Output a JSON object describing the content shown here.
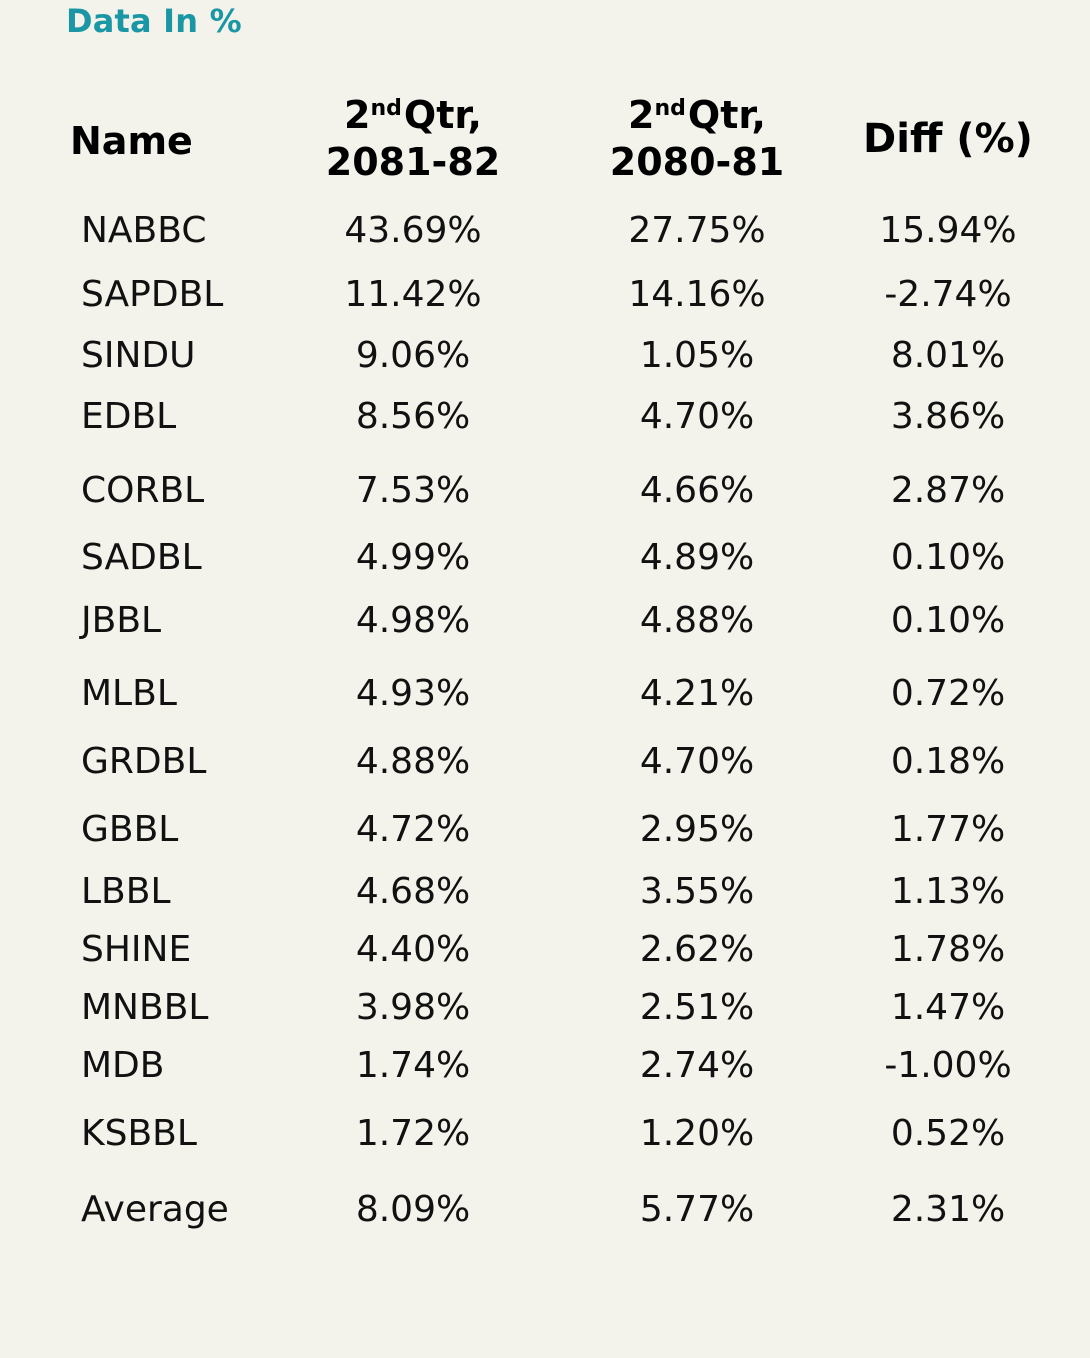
{
  "caption": "Data In %",
  "table": {
    "headers": {
      "name": "Name",
      "q1": {
        "sup_num": "2",
        "sup": "nd",
        "word": "Qtr,",
        "period": "2081-82"
      },
      "q2": {
        "sup_num": "2",
        "sup": "nd",
        "word": "Qtr,",
        "period": "2080-81"
      },
      "diff": "Diff (%)"
    },
    "rows": [
      {
        "name": "NABBC",
        "q1": "43.69%",
        "q2": "27.75%",
        "diff": "15.94%"
      },
      {
        "name": "SAPDBL",
        "q1": "11.42%",
        "q2": "14.16%",
        "diff": "-2.74%"
      },
      {
        "name": "SINDU",
        "q1": "9.06%",
        "q2": "1.05%",
        "diff": "8.01%"
      },
      {
        "name": "EDBL",
        "q1": "8.56%",
        "q2": "4.70%",
        "diff": "3.86%"
      },
      {
        "name": "CORBL",
        "q1": "7.53%",
        "q2": "4.66%",
        "diff": "2.87%"
      },
      {
        "name": "SADBL",
        "q1": "4.99%",
        "q2": "4.89%",
        "diff": "0.10%"
      },
      {
        "name": "JBBL",
        "q1": "4.98%",
        "q2": "4.88%",
        "diff": "0.10%"
      },
      {
        "name": "MLBL",
        "q1": "4.93%",
        "q2": "4.21%",
        "diff": "0.72%"
      },
      {
        "name": "GRDBL",
        "q1": "4.88%",
        "q2": "4.70%",
        "diff": "0.18%"
      },
      {
        "name": "GBBL",
        "q1": "4.72%",
        "q2": "2.95%",
        "diff": "1.77%"
      },
      {
        "name": "LBBL",
        "q1": "4.68%",
        "q2": "3.55%",
        "diff": "1.13%"
      },
      {
        "name": "SHINE",
        "q1": "4.40%",
        "q2": "2.62%",
        "diff": "1.78%"
      },
      {
        "name": "MNBBL",
        "q1": "3.98%",
        "q2": "2.51%",
        "diff": "1.47%"
      },
      {
        "name": "MDB",
        "q1": "1.74%",
        "q2": "2.74%",
        "diff": "-1.00%"
      },
      {
        "name": "KSBBL",
        "q1": "1.72%",
        "q2": "1.20%",
        "diff": "0.52%"
      },
      {
        "name": "Average",
        "q1": "8.09%",
        "q2": "5.77%",
        "diff": "2.31%"
      }
    ]
  }
}
